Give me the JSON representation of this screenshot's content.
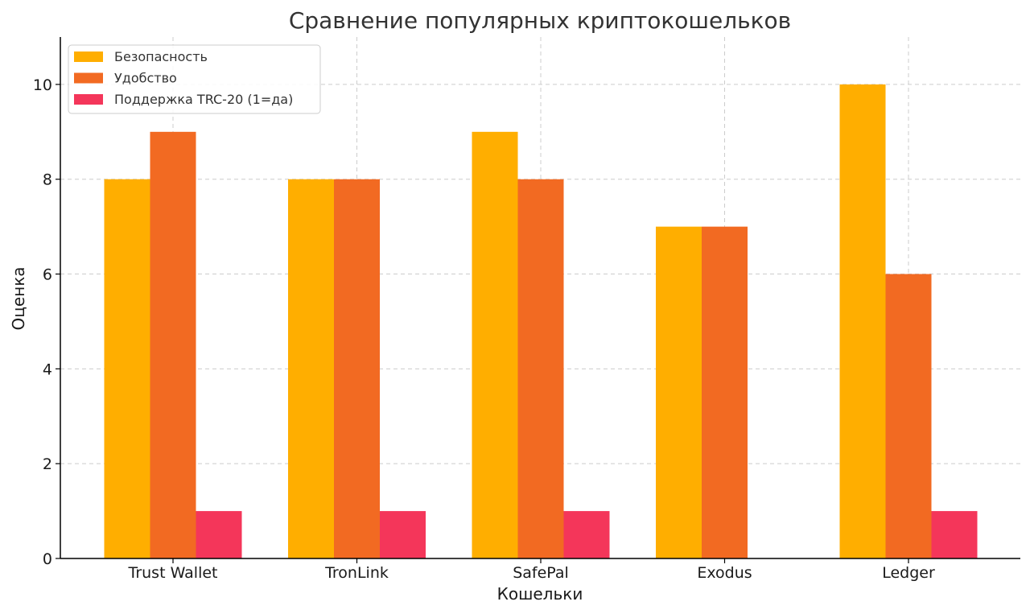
{
  "chart_data": {
    "type": "bar",
    "title": "Сравнение популярных криптокошельков",
    "xlabel": "Кошельки",
    "ylabel": "Оценка",
    "categories": [
      "Trust Wallet",
      "TronLink",
      "SafePal",
      "Exodus",
      "Ledger"
    ],
    "series": [
      {
        "name": "Безопасность",
        "values": [
          8,
          8,
          9,
          7,
          10
        ],
        "color": "#FFAE00"
      },
      {
        "name": "Удобство",
        "values": [
          9,
          8,
          8,
          7,
          6
        ],
        "color": "#F26A22"
      },
      {
        "name": "Поддержка TRC-20 (1=да)",
        "values": [
          1,
          1,
          1,
          0,
          1
        ],
        "color": "#F4365A"
      }
    ],
    "ylim": [
      0,
      11
    ],
    "yticks": [
      0,
      2,
      4,
      6,
      8,
      10
    ],
    "grid": true,
    "legend_position": "top-left"
  }
}
